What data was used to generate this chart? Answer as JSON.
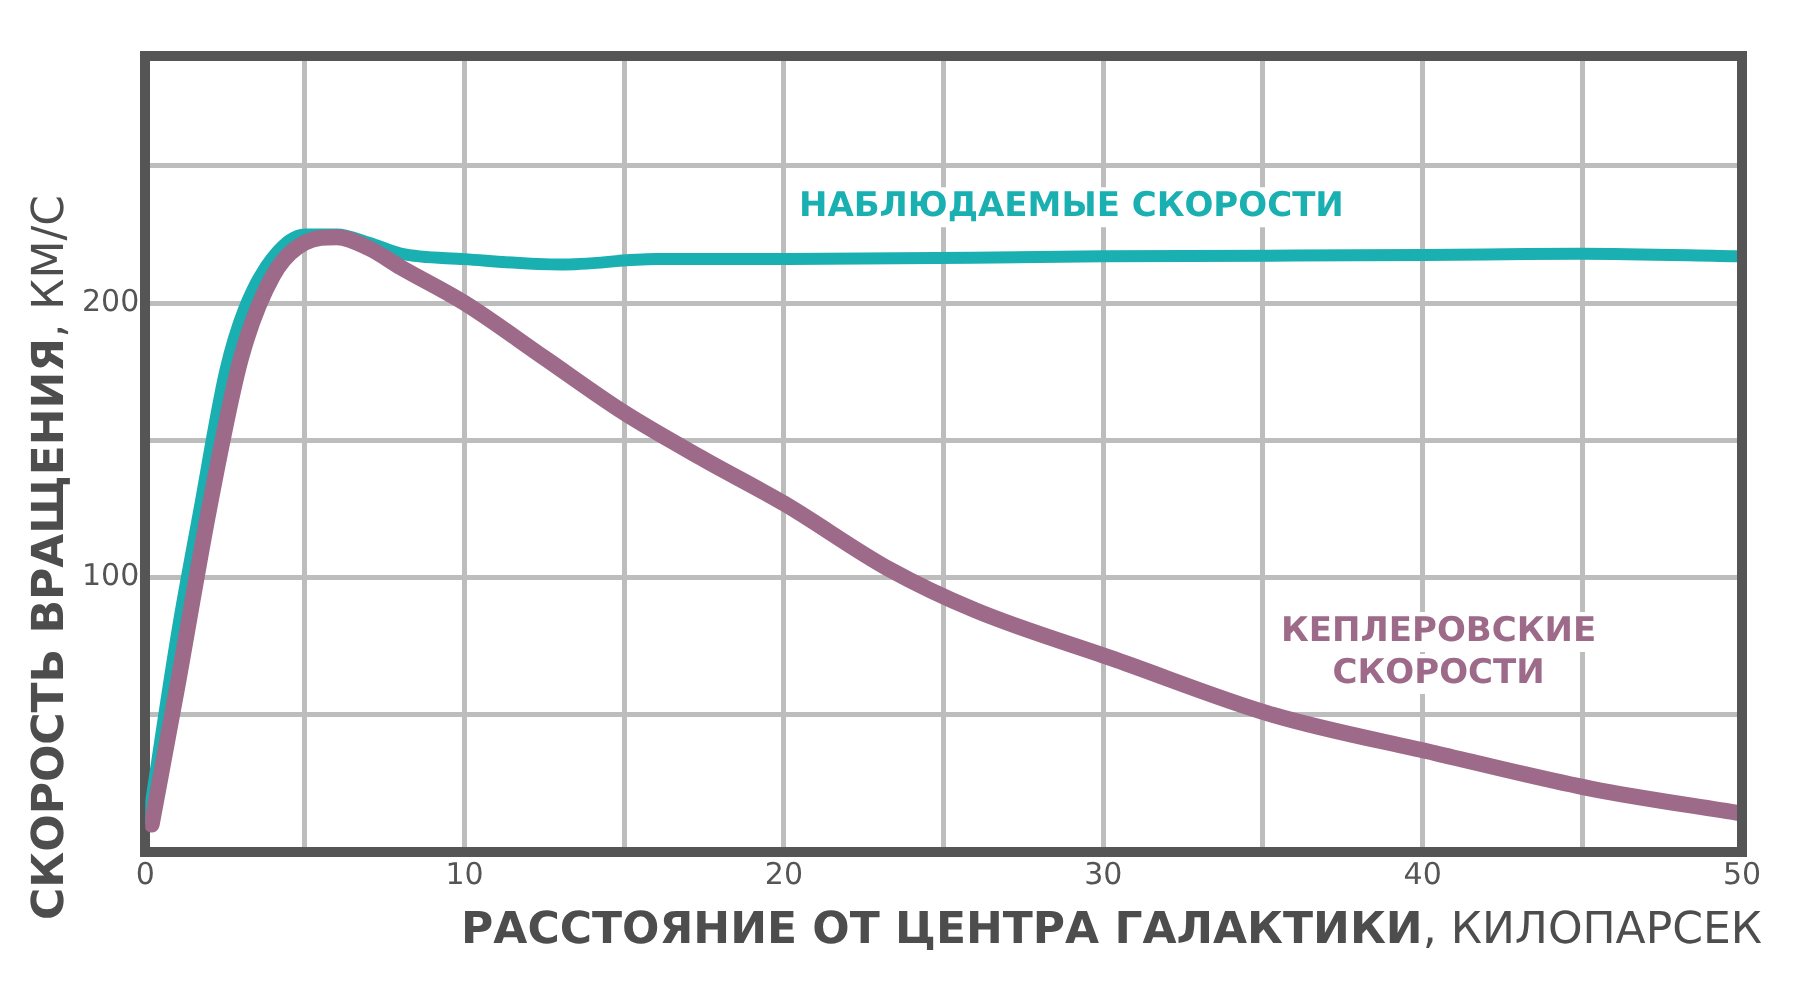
{
  "chart_data": {
    "type": "line",
    "xlabel": "РАССТОЯНИЕ ОТ ЦЕНТРА ГАЛАКТИКИ, КИЛОПАРСЕК",
    "ylabel": "СКОРОСТЬ ВРАЩЕНИЯ, КМ/С",
    "xlim": [
      0,
      50
    ],
    "xticks": [
      0,
      {
        "value": 5,
        "label": null
      },
      10,
      {
        "value": 15,
        "label": null
      },
      20,
      {
        "value": 25,
        "label": null
      },
      30,
      {
        "value": 35,
        "label": null
      },
      40,
      {
        "value": 45,
        "label": null
      },
      50
    ],
    "ylim": [
      0,
      290
    ],
    "yticks": [
      {
        "value": 50,
        "label": null
      },
      100,
      {
        "value": 150,
        "label": null
      },
      200,
      {
        "value": 250,
        "label": null
      }
    ],
    "grid": true,
    "legend": false,
    "marker": "none",
    "line_style": "solid",
    "series": [
      {
        "name": "НАБЛЮДАЕМЫЕ СКОРОСТИ",
        "color": "#1aafb0",
        "x": [
          0.1,
          1,
          1.7,
          2.5,
          3.1,
          4,
          5,
          6,
          7,
          8,
          10,
          13,
          16,
          20,
          30,
          40,
          45,
          50
        ],
        "values": [
          12,
          80,
          125,
          175,
          198,
          217,
          225,
          225,
          222,
          218,
          216,
          214,
          216,
          216,
          217,
          217.5,
          218,
          217
        ]
      },
      {
        "name": "КЕПЛЕРОВСКИЕ СКОРОСТИ",
        "color": "#9e6a8a",
        "x": [
          0.2,
          1,
          2,
          3,
          4,
          5,
          6,
          7,
          8,
          10,
          12.5,
          15,
          17.5,
          20,
          23.3,
          26,
          30.4,
          35.3,
          40.4,
          45.3,
          50
        ],
        "values": [
          10,
          60,
          125,
          180,
          210,
          222,
          224,
          220,
          213,
          200,
          180,
          160,
          143,
          127,
          103,
          88,
          70,
          50,
          36,
          23,
          14
        ]
      }
    ]
  }
}
